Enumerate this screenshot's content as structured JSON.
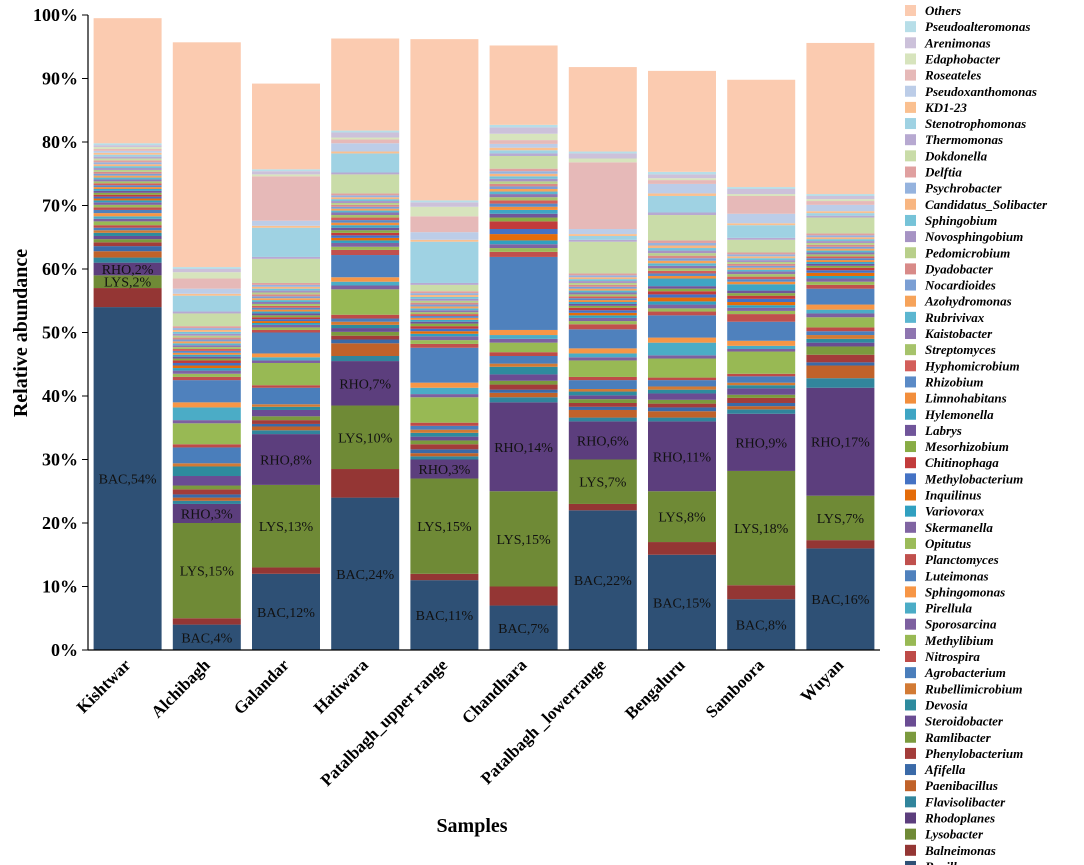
{
  "chart_data": {
    "type": "bar",
    "stacked": true,
    "title": "",
    "xlabel": "Samples",
    "ylabel": "Relative abundance",
    "ylim": [
      0,
      100
    ],
    "yticks": [
      "0%",
      "10%",
      "20%",
      "30%",
      "40%",
      "50%",
      "60%",
      "70%",
      "80%",
      "90%",
      "100%"
    ],
    "legend_position": "right",
    "categories": [
      "Kishtwar",
      "Alchibagh",
      "Galandar",
      "Hatiwara",
      "Patalbagh_upper range",
      "Chandhara",
      "Patalbagh _lowerrange",
      "Bengaluru",
      "Samboora",
      "Wuyan"
    ],
    "series": [
      {
        "name": "Bacillus",
        "color": "#2e5075",
        "values": [
          54,
          4,
          12,
          24,
          11,
          7,
          22,
          15,
          8,
          16
        ]
      },
      {
        "name": "Balneimonas",
        "color": "#943634",
        "values": [
          3,
          1,
          1,
          4.5,
          1,
          3,
          1,
          2,
          2.2,
          1.3
        ]
      },
      {
        "name": "Lysobacter",
        "color": "#6f8a36",
        "values": [
          2,
          15,
          13,
          10,
          15,
          15,
          7,
          8,
          18,
          7
        ]
      },
      {
        "name": "Rhodoplanes",
        "color": "#5c3e7d",
        "values": [
          2,
          3,
          8,
          7,
          3,
          14,
          6,
          11,
          9,
          17
        ]
      },
      {
        "name": "Flavisolibacter",
        "color": "#31859c",
        "values": [
          0.8,
          0.5,
          0.6,
          0.8,
          0.5,
          0.8,
          0.6,
          0.6,
          0.7,
          1.5
        ]
      },
      {
        "name": "Paenibacillus",
        "color": "#c0622a",
        "values": [
          1,
          0.5,
          0.6,
          2,
          0.5,
          0.7,
          1.2,
          1,
          0.5,
          2
        ]
      },
      {
        "name": "Afifella",
        "color": "#3a6aa8",
        "values": [
          0.8,
          0.5,
          0.4,
          0.6,
          0.6,
          0.5,
          0.5,
          0.6,
          0.5,
          0.5
        ]
      },
      {
        "name": "Phenylobacterium",
        "color": "#a33c3a",
        "values": [
          0.6,
          0.8,
          0.6,
          0.6,
          0.8,
          0.8,
          0.6,
          0.6,
          0.8,
          1.2
        ]
      },
      {
        "name": "Ramlibacter",
        "color": "#7b9a3e",
        "values": [
          0.5,
          0.6,
          0.6,
          0.6,
          0.6,
          0.6,
          0.6,
          0.6,
          0.5,
          1.3
        ]
      },
      {
        "name": "Steroidobacter",
        "color": "#6a4c93",
        "values": [
          0.5,
          1.5,
          1,
          0.6,
          0.6,
          1,
          0.6,
          1,
          1,
          0.6
        ]
      },
      {
        "name": "Devosia",
        "color": "#2e8b9e",
        "values": [
          0.5,
          1.5,
          0.5,
          0.5,
          0.6,
          1.2,
          0.6,
          0.6,
          0.5,
          0.6
        ]
      },
      {
        "name": "Rubellimicrobium",
        "color": "#d27a34",
        "values": [
          0.4,
          0.5,
          0.4,
          0.5,
          0.5,
          0.5,
          0.4,
          0.5,
          0.4,
          0.6
        ]
      },
      {
        "name": "Agrobacterium",
        "color": "#4a7ebb",
        "values": [
          0.4,
          2.5,
          2.6,
          0.5,
          0.6,
          1.2,
          1.4,
          1,
          1,
          0.6
        ]
      },
      {
        "name": "Nitrospira",
        "color": "#be4b48",
        "values": [
          0.4,
          0.5,
          0.4,
          0.6,
          0.5,
          0.6,
          0.5,
          0.4,
          0.4,
          0.6
        ]
      },
      {
        "name": "Methylibium",
        "color": "#98b954",
        "values": [
          0.6,
          3.3,
          3.5,
          4,
          4,
          1.5,
          2.6,
          3,
          3.5,
          1.6
        ]
      },
      {
        "name": "Sporosarcina",
        "color": "#7d60a0",
        "values": [
          0.4,
          0.5,
          0.4,
          0.6,
          0.5,
          0.6,
          0.5,
          0.5,
          0.4,
          0.6
        ]
      },
      {
        "name": "Pirellula",
        "color": "#4bacc6",
        "values": [
          0.4,
          2,
          0.5,
          0.6,
          1,
          0.6,
          0.6,
          2,
          0.5,
          0.6
        ]
      },
      {
        "name": "Sphingomonas",
        "color": "#f79646",
        "values": [
          0.5,
          0.8,
          0.6,
          0.7,
          0.8,
          0.8,
          0.8,
          0.8,
          0.8,
          0.8
        ]
      },
      {
        "name": "Luteimonas",
        "color": "#4f81bd",
        "values": [
          0.5,
          3.5,
          3.3,
          3.5,
          5.5,
          11.5,
          3,
          3.5,
          3,
          2.5
        ]
      },
      {
        "name": "Planctomyces",
        "color": "#c0504d",
        "values": [
          0.4,
          0.5,
          0.4,
          0.8,
          0.6,
          0.8,
          0.8,
          0.6,
          1.2,
          0.6
        ]
      },
      {
        "name": "Opitutus",
        "color": "#9bbb59",
        "values": [
          0.4,
          0.5,
          0.4,
          0.5,
          0.6,
          0.6,
          0.5,
          0.5,
          0.5,
          0.5
        ]
      },
      {
        "name": "Skermanella",
        "color": "#8064a2",
        "values": [
          0.4,
          0.5,
          0.4,
          0.6,
          0.6,
          0.6,
          0.5,
          0.6,
          0.5,
          0.5
        ]
      },
      {
        "name": "Variovorax",
        "color": "#31a0c0",
        "values": [
          0.3,
          0.4,
          0.3,
          0.4,
          0.4,
          0.6,
          0.4,
          0.5,
          0.4,
          0.4
        ]
      },
      {
        "name": "Inquilinus",
        "color": "#e46c0a",
        "values": [
          0.3,
          0.4,
          0.3,
          0.4,
          0.4,
          1,
          0.4,
          0.6,
          0.5,
          0.5
        ]
      },
      {
        "name": "Methylobacterium",
        "color": "#4472c4",
        "values": [
          0.3,
          0.4,
          0.3,
          0.4,
          0.4,
          0.8,
          0.4,
          0.5,
          0.5,
          0.4
        ]
      },
      {
        "name": "Chitinophaga",
        "color": "#c23b3b",
        "values": [
          0.3,
          0.4,
          0.3,
          0.4,
          0.4,
          1.2,
          0.4,
          0.5,
          0.5,
          0.4
        ]
      },
      {
        "name": "Mesorhizobium",
        "color": "#88ac45",
        "values": [
          0.3,
          0.3,
          0.3,
          0.4,
          0.4,
          0.6,
          0.3,
          0.4,
          0.4,
          0.3
        ]
      },
      {
        "name": "Labrys",
        "color": "#70559a",
        "values": [
          0.3,
          0.3,
          0.3,
          0.4,
          0.3,
          0.6,
          0.3,
          0.4,
          0.4,
          0.3
        ]
      },
      {
        "name": "Hylemonella",
        "color": "#3fa5c4",
        "values": [
          0.3,
          0.3,
          0.3,
          0.4,
          0.3,
          0.6,
          0.3,
          1.2,
          1,
          0.3
        ]
      },
      {
        "name": "Limnohabitans",
        "color": "#f28e3c",
        "values": [
          0.3,
          0.3,
          0.3,
          0.4,
          0.3,
          0.5,
          0.3,
          0.4,
          0.4,
          0.3
        ]
      },
      {
        "name": "Rhizobium",
        "color": "#5a8ac6",
        "values": [
          0.3,
          0.3,
          0.3,
          0.4,
          0.3,
          0.5,
          0.3,
          0.4,
          0.4,
          0.3
        ]
      },
      {
        "name": "Hyphomicrobium",
        "color": "#d35e5a",
        "values": [
          0.3,
          0.3,
          0.3,
          0.4,
          0.3,
          0.5,
          0.3,
          0.4,
          0.4,
          0.3
        ]
      },
      {
        "name": "Streptomyces",
        "color": "#a6c36b",
        "values": [
          0.3,
          0.3,
          0.3,
          0.4,
          0.3,
          0.5,
          0.3,
          0.4,
          0.4,
          0.3
        ]
      },
      {
        "name": "Kaistobacter",
        "color": "#8e75b0",
        "values": [
          0.3,
          0.3,
          0.3,
          0.4,
          0.3,
          0.5,
          0.3,
          0.4,
          0.4,
          0.3
        ]
      },
      {
        "name": "Rubrivivax",
        "color": "#5bb6d0",
        "values": [
          0.3,
          0.3,
          0.3,
          0.3,
          0.3,
          0.4,
          0.3,
          0.4,
          0.3,
          0.3
        ]
      },
      {
        "name": "Azohydromonas",
        "color": "#f6a35a",
        "values": [
          0.3,
          0.3,
          0.3,
          0.3,
          0.3,
          0.4,
          0.3,
          0.4,
          0.3,
          0.3
        ]
      },
      {
        "name": "Nocardioides",
        "color": "#7b9fd4",
        "values": [
          0.3,
          0.3,
          0.3,
          0.3,
          0.3,
          0.4,
          0.3,
          0.4,
          0.3,
          0.3
        ]
      },
      {
        "name": "Dyadobacter",
        "color": "#d88a88",
        "values": [
          0.3,
          0.3,
          0.3,
          0.3,
          0.3,
          0.4,
          0.3,
          0.4,
          0.3,
          0.3
        ]
      },
      {
        "name": "Pedomicrobium",
        "color": "#b8cf8a",
        "values": [
          0.3,
          0.3,
          0.3,
          0.3,
          0.3,
          0.4,
          0.3,
          0.4,
          0.3,
          0.3
        ]
      },
      {
        "name": "Novosphingobium",
        "color": "#a693c4",
        "values": [
          0.3,
          0.3,
          0.3,
          0.3,
          0.3,
          0.4,
          0.3,
          0.4,
          0.3,
          0.3
        ]
      },
      {
        "name": "Sphingobium",
        "color": "#76c3d8",
        "values": [
          0.3,
          0.3,
          0.3,
          0.3,
          0.3,
          0.4,
          0.3,
          0.4,
          0.3,
          0.3
        ]
      },
      {
        "name": "Candidatus_Solibacter",
        "color": "#f8b681",
        "values": [
          0.3,
          0.3,
          0.3,
          0.3,
          0.3,
          0.4,
          0.3,
          0.4,
          0.3,
          0.3
        ]
      },
      {
        "name": "Psychrobacter",
        "color": "#95b3de",
        "values": [
          0.3,
          0.3,
          0.3,
          0.3,
          0.3,
          0.4,
          0.3,
          0.4,
          0.3,
          0.3
        ]
      },
      {
        "name": "Delftia",
        "color": "#e0a0a0",
        "values": [
          0.3,
          0.3,
          0.3,
          0.3,
          0.3,
          0.4,
          0.3,
          0.4,
          0.3,
          0.3
        ]
      },
      {
        "name": "Dokdonella",
        "color": "#c9dca8",
        "values": [
          0.3,
          2,
          3.8,
          3,
          1,
          2,
          5,
          4,
          2,
          2.5
        ]
      },
      {
        "name": "Thermomonas",
        "color": "#b7a9d1",
        "values": [
          0.3,
          0.3,
          0.3,
          0.3,
          0.3,
          0.4,
          0.3,
          0.4,
          0.3,
          0.3
        ]
      },
      {
        "name": "Stenotrophomonas",
        "color": "#9fd2e3",
        "values": [
          0.3,
          2.5,
          4.6,
          3,
          6.5,
          0.5,
          0.6,
          2.6,
          2,
          0.4
        ]
      },
      {
        "name": "KD1-23",
        "color": "#fac090",
        "values": [
          0.3,
          0.3,
          0.3,
          0.3,
          0.3,
          0.4,
          0.3,
          0.4,
          0.3,
          0.3
        ]
      },
      {
        "name": "Pseudoxanthomonas",
        "color": "#bccde8",
        "values": [
          0.3,
          0.8,
          0.8,
          1.3,
          1.2,
          0.6,
          0.8,
          1.5,
          1.5,
          1
        ]
      },
      {
        "name": "Roseateles",
        "color": "#e6b9b8",
        "values": [
          0.3,
          1.6,
          7,
          0.6,
          2.5,
          0.6,
          10.5,
          0.6,
          2.8,
          0.6
        ]
      },
      {
        "name": "Edaphobacter",
        "color": "#d7e4bd",
        "values": [
          0.3,
          1,
          0.3,
          0.3,
          1.5,
          1,
          0.6,
          0.3,
          0.3,
          0.3
        ]
      },
      {
        "name": "Arenimonas",
        "color": "#ccc1da",
        "values": [
          0.3,
          0.5,
          0.5,
          0.8,
          0.7,
          1,
          0.8,
          0.6,
          0.8,
          0.5
        ]
      },
      {
        "name": "Pseudoalteromonas",
        "color": "#b7dee8",
        "values": [
          0.3,
          0.3,
          0.3,
          0.3,
          0.3,
          0.4,
          0.3,
          0.4,
          0.3,
          0.3
        ]
      },
      {
        "name": "Others",
        "color": "#fbcbb0",
        "values": [
          19.7,
          35.4,
          13.5,
          14.5,
          25.4,
          12.5,
          13.3,
          15.9,
          16.9,
          23.8
        ]
      }
    ],
    "segment_labels": [
      {
        "series": "Bacillus",
        "texts": [
          "BAC,54%",
          "BAC,4%",
          "BAC,12%",
          "BAC,24%",
          "BAC,11%",
          "BAC,7%",
          "BAC,22%",
          "BAC,15%",
          "BAC,8%",
          "BAC,16%"
        ]
      },
      {
        "series": "Lysobacter",
        "texts": [
          "LYS,2%",
          "LYS,15%",
          "LYS,13%",
          "LYS,10%",
          "LYS,15%",
          "LYS,15%",
          "LYS,7%",
          "LYS,8%",
          "LYS,18%",
          "LYS,7%"
        ]
      },
      {
        "series": "Rhodoplanes",
        "texts": [
          "RHO,2%",
          "RHO,3%",
          "RHO,8%",
          "RHO,7%",
          "RHO,3%",
          "RHO,14%",
          "RHO,6%",
          "RHO,11%",
          "RHO,9%",
          "RHO,17%"
        ]
      }
    ]
  }
}
